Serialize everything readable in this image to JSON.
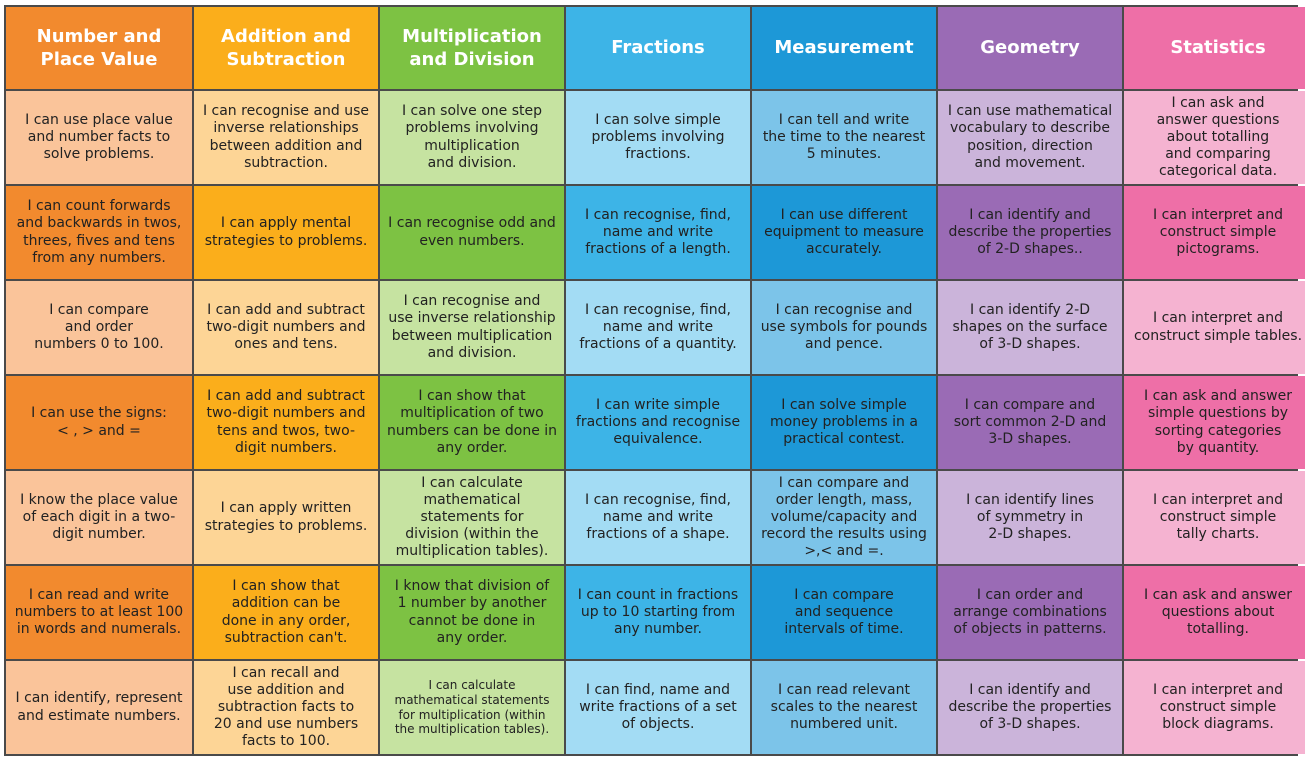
{
  "columns": [
    {
      "header": "Number and\nPlace Value",
      "header_color": "#F28A2E",
      "cells": [
        {
          "text": "I can use place value\nand number facts to\nsolve problems.",
          "bg": "#FAC49A"
        },
        {
          "text": "I can count forwards\nand backwards in twos,\nthrees, fives and tens\nfrom any numbers.",
          "bg": "#F28A2E"
        },
        {
          "text": "I can compare\nand order\nnumbers 0 to 100.",
          "bg": "#FAC49A"
        },
        {
          "text": "I can use the signs:\n< , > and =",
          "bg": "#F28A2E"
        },
        {
          "text": "I know the place value\nof each digit in a two-\ndigit number.",
          "bg": "#FAC49A"
        },
        {
          "text": "I can read and write\nnumbers to at least 100\nin words and numerals.",
          "bg": "#F28A2E"
        },
        {
          "text": "I can identify, represent\nand estimate numbers.",
          "bg": "#FAC49A"
        }
      ]
    },
    {
      "header": "Addition and\nSubtraction",
      "header_color": "#FBAE1B",
      "cells": [
        {
          "text": "I can recognise and use\ninverse relationships\nbetween addition and\nsubtraction.",
          "bg": "#FDD596"
        },
        {
          "text": "I can apply mental\nstrategies to problems.",
          "bg": "#FBAE1B"
        },
        {
          "text": "I can add and subtract\ntwo-digit numbers and\nones and tens.",
          "bg": "#FDD596"
        },
        {
          "text": "I can add and subtract\ntwo-digit numbers and\ntens and twos, two-\ndigit numbers.",
          "bg": "#FBAE1B"
        },
        {
          "text": "I can apply written\nstrategies to problems.",
          "bg": "#FDD596"
        },
        {
          "text": "I can show that\naddition can be\ndone in any order,\nsubtraction can't.",
          "bg": "#FBAE1B"
        },
        {
          "text": "I can recall and\nuse addition and\nsubtraction facts to\n20 and use numbers\nfacts to 100.",
          "bg": "#FDD596"
        }
      ]
    },
    {
      "header": "Multiplication\nand Division",
      "header_color": "#7DC243",
      "cells": [
        {
          "text": "I can solve one step\nproblems involving\nmultiplication\nand division.",
          "bg": "#C6E3A1"
        },
        {
          "text": "I can recognise odd and\neven numbers.",
          "bg": "#7DC243"
        },
        {
          "text": "I can recognise and\nuse inverse relationship\nbetween multiplication\nand division.",
          "bg": "#C6E3A1"
        },
        {
          "text": "I can show that\nmultiplication of two\nnumbers can be done in\nany order.",
          "bg": "#7DC243"
        },
        {
          "text": "I can calculate\nmathematical\nstatements for\ndivision (within the\nmultiplication tables).",
          "bg": "#C6E3A1"
        },
        {
          "text": "I know that division of\n1 number by another\ncannot be done in\nany order.",
          "bg": "#7DC243"
        },
        {
          "text": "I can calculate\nmathematical statements\nfor multiplication (within\nthe multiplication tables).",
          "bg": "#C6E3A1",
          "small": true
        }
      ]
    },
    {
      "header": "Fractions",
      "header_color": "#3DB4E7",
      "cells": [
        {
          "text": "I can solve simple\nproblems involving\nfractions.",
          "bg": "#A3DCF4"
        },
        {
          "text": "I can recognise, find,\nname and write\nfractions of a length.",
          "bg": "#3DB4E7"
        },
        {
          "text": "I can recognise, find,\nname and write\nfractions of a quantity.",
          "bg": "#A3DCF4"
        },
        {
          "text": "I can write simple\nfractions and recognise\nequivalence.",
          "bg": "#3DB4E7"
        },
        {
          "text": "I can recognise, find,\nname and write\nfractions of a shape.",
          "bg": "#A3DCF4"
        },
        {
          "text": "I can count in fractions\nup to 10 starting from\nany number.",
          "bg": "#3DB4E7"
        },
        {
          "text": "I can find, name and\nwrite fractions of a set\nof objects.",
          "bg": "#A3DCF4"
        }
      ]
    },
    {
      "header": "Measurement",
      "header_color": "#1D98D7",
      "cells": [
        {
          "text": "I can tell and write\nthe time to the nearest\n5 minutes.",
          "bg": "#7CC4E9"
        },
        {
          "text": "I can use different\nequipment to measure\naccurately.",
          "bg": "#1D98D7"
        },
        {
          "text": "I can recognise and\nuse symbols for pounds\nand pence.",
          "bg": "#7CC4E9"
        },
        {
          "text": "I can solve simple\nmoney problems in a\npractical contest.",
          "bg": "#1D98D7"
        },
        {
          "text": "I can compare and\norder length, mass,\nvolume/capacity and\nrecord the results using\n>,< and =.",
          "bg": "#7CC4E9"
        },
        {
          "text": "I can compare\nand sequence\nintervals of time.",
          "bg": "#1D98D7"
        },
        {
          "text": "I can read relevant\nscales to the nearest\nnumbered unit.",
          "bg": "#7CC4E9"
        }
      ]
    },
    {
      "header": "Geometry",
      "header_color": "#9A6BB5",
      "cells": [
        {
          "text": "I can use mathematical\nvocabulary to describe\nposition, direction\nand movement.",
          "bg": "#CBB4DA"
        },
        {
          "text": "I can identify and\ndescribe the properties\nof 2-D shapes..",
          "bg": "#9A6BB5"
        },
        {
          "text": "I can identify 2-D\nshapes on the surface\nof 3-D shapes.",
          "bg": "#CBB4DA"
        },
        {
          "text": "I can compare and\nsort common 2-D and\n3-D shapes.",
          "bg": "#9A6BB5"
        },
        {
          "text": "I can identify lines\nof symmetry in\n2-D shapes.",
          "bg": "#CBB4DA"
        },
        {
          "text": "I can order and\narrange combinations\nof objects in patterns.",
          "bg": "#9A6BB5"
        },
        {
          "text": "I can identify and\ndescribe the properties\nof 3-D shapes.",
          "bg": "#CBB4DA"
        }
      ]
    },
    {
      "header": "Statistics",
      "header_color": "#EE6FA7",
      "cells": [
        {
          "text": "I can ask and\nanswer questions\nabout totalling\nand comparing\ncategorical data.",
          "bg": "#F5B3D1"
        },
        {
          "text": "I can interpret and\nconstruct simple\npictograms.",
          "bg": "#EE6FA7"
        },
        {
          "text": "I can interpret and\nconstruct simple tables.",
          "bg": "#F5B3D1"
        },
        {
          "text": "I can ask and answer\nsimple questions by\nsorting categories\nby quantity.",
          "bg": "#EE6FA7"
        },
        {
          "text": "I can interpret and\nconstruct simple\ntally charts.",
          "bg": "#F5B3D1"
        },
        {
          "text": "I can ask and answer\nquestions about\ntotalling.",
          "bg": "#EE6FA7"
        },
        {
          "text": "I can interpret and\nconstruct simple\nblock diagrams.",
          "bg": "#F5B3D1"
        }
      ]
    }
  ]
}
